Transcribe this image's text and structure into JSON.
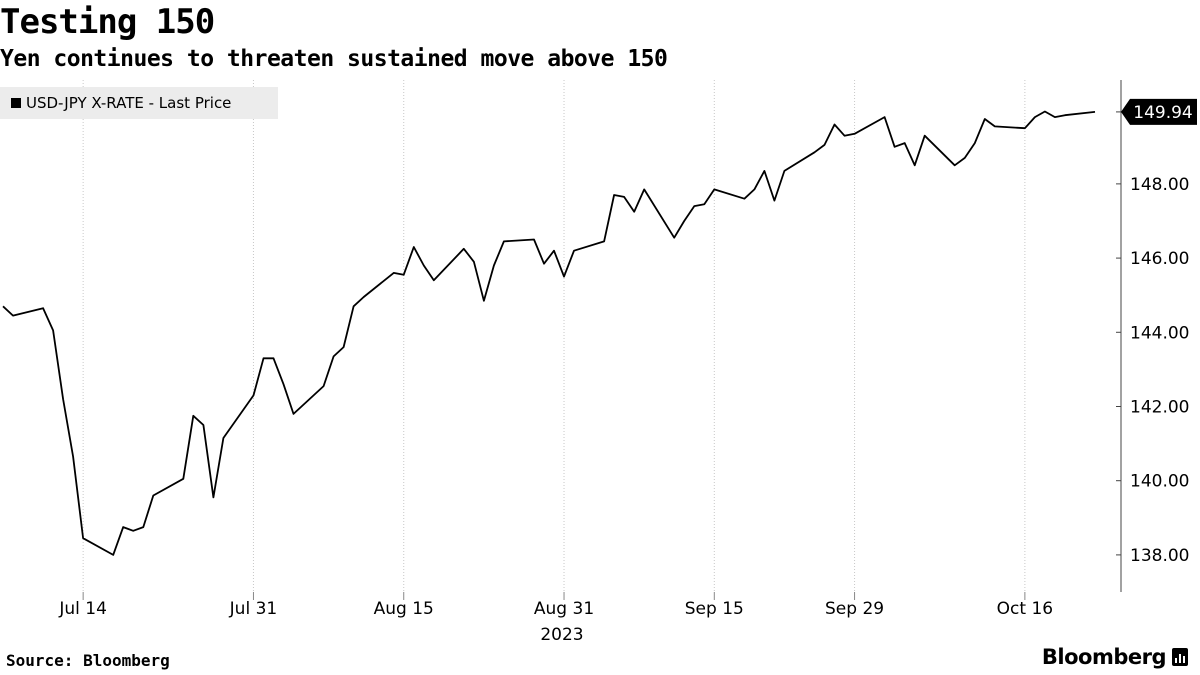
{
  "header": {
    "title": "Testing 150",
    "subtitle": "Yen continues to threaten sustained move above 150"
  },
  "legend": {
    "label": "USD-JPY X-RATE - Last Price"
  },
  "footer": {
    "source": "Source: Bloomberg",
    "brand": "Bloomberg"
  },
  "colors": {
    "line": "#000000",
    "grid": "#c8c8c8",
    "legend_bg": "#ececec"
  },
  "chart_data": {
    "type": "line",
    "series": [
      {
        "name": "USD-JPY X-RATE - Last Price",
        "x": [
          "2023-07-06",
          "2023-07-07",
          "2023-07-10",
          "2023-07-11",
          "2023-07-12",
          "2023-07-13",
          "2023-07-14",
          "2023-07-17",
          "2023-07-18",
          "2023-07-19",
          "2023-07-20",
          "2023-07-21",
          "2023-07-24",
          "2023-07-25",
          "2023-07-26",
          "2023-07-27",
          "2023-07-28",
          "2023-07-31",
          "2023-08-01",
          "2023-08-02",
          "2023-08-03",
          "2023-08-04",
          "2023-08-07",
          "2023-08-08",
          "2023-08-09",
          "2023-08-10",
          "2023-08-11",
          "2023-08-14",
          "2023-08-15",
          "2023-08-16",
          "2023-08-17",
          "2023-08-18",
          "2023-08-21",
          "2023-08-22",
          "2023-08-23",
          "2023-08-24",
          "2023-08-25",
          "2023-08-28",
          "2023-08-29",
          "2023-08-30",
          "2023-08-31",
          "2023-09-01",
          "2023-09-04",
          "2023-09-05",
          "2023-09-06",
          "2023-09-07",
          "2023-09-08",
          "2023-09-11",
          "2023-09-12",
          "2023-09-13",
          "2023-09-14",
          "2023-09-15",
          "2023-09-18",
          "2023-09-19",
          "2023-09-20",
          "2023-09-21",
          "2023-09-22",
          "2023-09-25",
          "2023-09-26",
          "2023-09-27",
          "2023-09-28",
          "2023-09-29",
          "2023-10-02",
          "2023-10-03",
          "2023-10-04",
          "2023-10-05",
          "2023-10-06",
          "2023-10-09",
          "2023-10-10",
          "2023-10-11",
          "2023-10-12",
          "2023-10-13",
          "2023-10-16",
          "2023-10-17",
          "2023-10-18",
          "2023-10-19",
          "2023-10-20",
          "2023-10-23"
        ],
        "values": [
          144.7,
          144.45,
          144.65,
          144.05,
          142.2,
          140.65,
          138.45,
          138.0,
          138.75,
          138.65,
          138.75,
          139.6,
          140.05,
          141.75,
          141.5,
          139.55,
          141.15,
          142.3,
          143.3,
          143.3,
          142.6,
          141.8,
          142.55,
          143.35,
          143.6,
          144.7,
          144.95,
          145.6,
          145.55,
          146.3,
          145.8,
          145.4,
          146.25,
          145.9,
          144.85,
          145.8,
          146.45,
          146.5,
          145.85,
          146.2,
          145.5,
          146.2,
          146.45,
          147.7,
          147.65,
          147.25,
          147.85,
          146.55,
          147.0,
          147.4,
          147.45,
          147.85,
          147.6,
          147.85,
          148.35,
          147.55,
          148.35,
          148.85,
          149.05,
          149.6,
          149.3,
          149.35,
          149.8,
          149.0,
          149.1,
          148.5,
          149.3,
          148.5,
          148.7,
          149.1,
          149.75,
          149.55,
          149.5,
          149.8,
          149.95,
          149.8,
          149.85,
          149.94
        ]
      }
    ],
    "x_ticks": [
      {
        "label": "Jul 14",
        "date": "2023-07-14"
      },
      {
        "label": "Jul 31",
        "date": "2023-07-31"
      },
      {
        "label": "Aug 15",
        "date": "2023-08-15"
      },
      {
        "label": "Aug 31",
        "date": "2023-08-31"
      },
      {
        "label": "Sep 15",
        "date": "2023-09-15"
      },
      {
        "label": "Sep 29",
        "date": "2023-09-29"
      },
      {
        "label": "Oct 16",
        "date": "2023-10-16"
      }
    ],
    "x_axis_year": "2023",
    "y_ticks": [
      138,
      140,
      142,
      144,
      146,
      148
    ],
    "y_tick_labels": [
      "138.00",
      "140.00",
      "142.00",
      "144.00",
      "146.00",
      "148.00"
    ],
    "ylim": [
      137.0,
      150.8
    ],
    "last_value_label": "149.94",
    "last_value": 149.94,
    "y_axis_position": "right",
    "grid": "vertical dotted",
    "legend_position": "top-left"
  }
}
